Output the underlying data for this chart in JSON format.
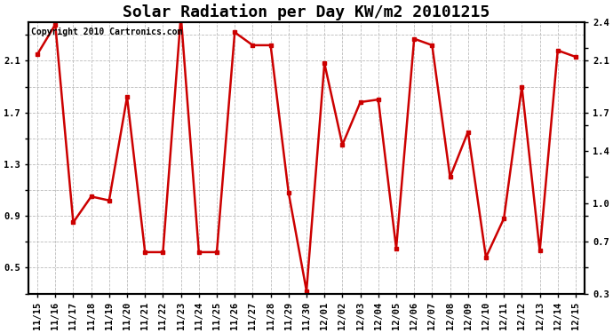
{
  "title": "Solar Radiation per Day KW/m2 20101215",
  "copyright_text": "Copyright 2010 Cartronics.com",
  "x_labels": [
    "11/15",
    "11/16",
    "11/17",
    "11/18",
    "11/19",
    "11/20",
    "11/21",
    "11/22",
    "11/23",
    "11/24",
    "11/25",
    "11/26",
    "11/27",
    "11/28",
    "11/29",
    "11/30",
    "12/01",
    "12/02",
    "12/03",
    "12/04",
    "12/05",
    "12/06",
    "12/07",
    "12/08",
    "12/09",
    "12/10",
    "12/11",
    "12/12",
    "12/13",
    "12/14",
    "12/15"
  ],
  "y_values": [
    2.15,
    2.38,
    0.85,
    1.05,
    1.02,
    1.82,
    0.62,
    0.62,
    2.45,
    0.62,
    0.62,
    2.32,
    2.22,
    2.22,
    1.08,
    0.32,
    2.08,
    1.45,
    1.78,
    1.8,
    0.65,
    2.27,
    2.22,
    1.2,
    1.55,
    0.58,
    0.88,
    1.9,
    0.63,
    2.18,
    2.13
  ],
  "line_color": "#cc0000",
  "marker": "s",
  "marker_size": 3,
  "ylim_min": 0.3,
  "ylim_max": 2.4,
  "left_yticks": [
    0.3,
    0.5,
    0.7,
    0.9,
    1.1,
    1.3,
    1.5,
    1.7,
    1.9,
    2.1,
    2.3
  ],
  "left_ytick_labels": [
    "",
    "0.5",
    "",
    "0.9",
    "",
    "1.3",
    "",
    "1.7",
    "",
    "2.1",
    ""
  ],
  "right_yticks": [
    0.3,
    0.5,
    0.7,
    0.9,
    1.0,
    1.2,
    1.4,
    1.6,
    1.7,
    1.9,
    2.1,
    2.2,
    2.4
  ],
  "right_ytick_labels": [
    "0.3",
    "",
    "0.7",
    "",
    "1.0",
    "",
    "1.4",
    "",
    "1.7",
    "",
    "2.1",
    "",
    "2.4"
  ],
  "bg_color": "#ffffff",
  "grid_color": "#bbbbbb",
  "title_fontsize": 13,
  "label_fontsize": 7.5,
  "copyright_fontsize": 7
}
